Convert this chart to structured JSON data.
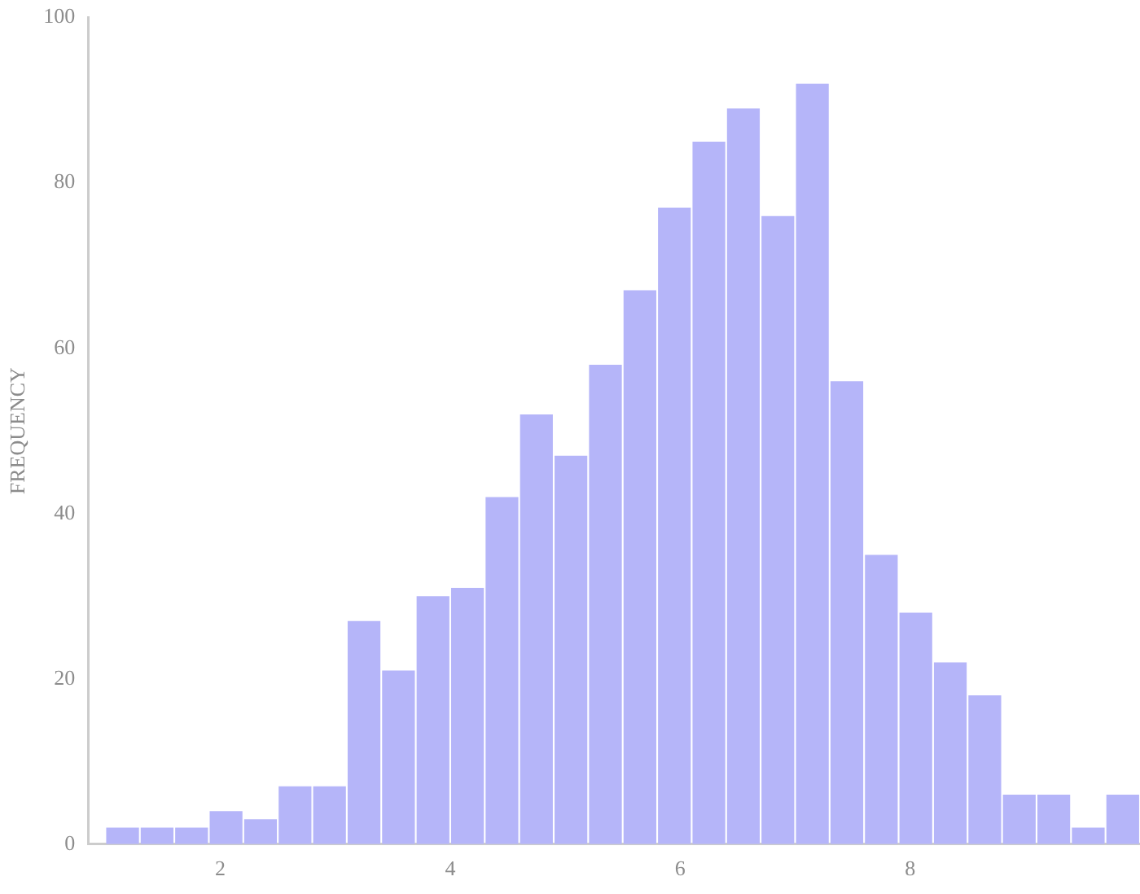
{
  "chart_data": {
    "type": "histogram",
    "ylabel": "FREQUENCY",
    "bins": [
      1.0,
      1.3,
      1.6,
      1.9,
      2.2,
      2.5,
      2.8,
      3.1,
      3.4,
      3.7,
      4.0,
      4.3,
      4.6,
      4.9,
      5.2,
      5.5,
      5.8,
      6.1,
      6.4,
      6.7,
      7.0,
      7.3,
      7.6,
      7.9,
      8.2,
      8.5,
      8.8,
      9.1,
      9.4,
      9.7,
      10.0
    ],
    "values": [
      2,
      2,
      2,
      4,
      3,
      7,
      7,
      27,
      21,
      30,
      31,
      42,
      52,
      47,
      58,
      67,
      77,
      85,
      89,
      76,
      92,
      56,
      35,
      28,
      22,
      18,
      6,
      6,
      2,
      6
    ],
    "color": "#b5b5f9",
    "xlim": [
      0.85,
      10.0
    ],
    "xticks": [
      2,
      4,
      6,
      8
    ],
    "ylim": [
      0,
      100
    ],
    "yticks": [
      0,
      20,
      40,
      60,
      80,
      100
    ],
    "grid": false,
    "legend": false
  }
}
